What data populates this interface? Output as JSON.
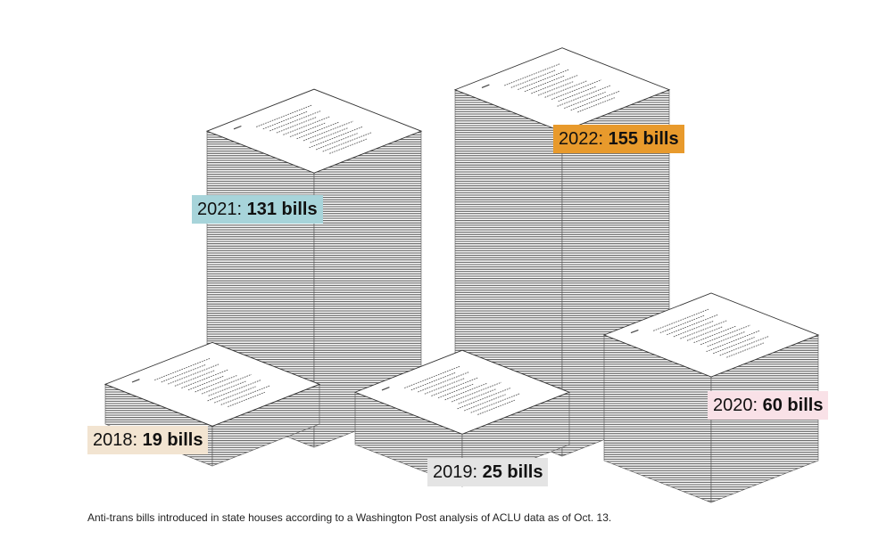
{
  "chart_data": {
    "type": "bar",
    "categories": [
      "2018",
      "2019",
      "2020",
      "2021",
      "2022"
    ],
    "values": [
      19,
      25,
      60,
      131,
      155
    ],
    "value_unit": "bills",
    "labels": [
      {
        "year": "2018",
        "value_text": "19 bills",
        "color": "#f2e4d1"
      },
      {
        "year": "2019",
        "value_text": "25 bills",
        "color": "#e4e4e4"
      },
      {
        "year": "2020",
        "value_text": "60 bills",
        "color": "#f9e1e7"
      },
      {
        "year": "2021",
        "value_text": "131 bills",
        "color": "#a7d4da"
      },
      {
        "year": "2022",
        "value_text": "155 bills",
        "color": "#e89a2c"
      }
    ],
    "label_separator": ":"
  },
  "caption": "Anti-trans bills introduced in state houses according to a Washington Post analysis of ACLU data as of Oct. 13."
}
